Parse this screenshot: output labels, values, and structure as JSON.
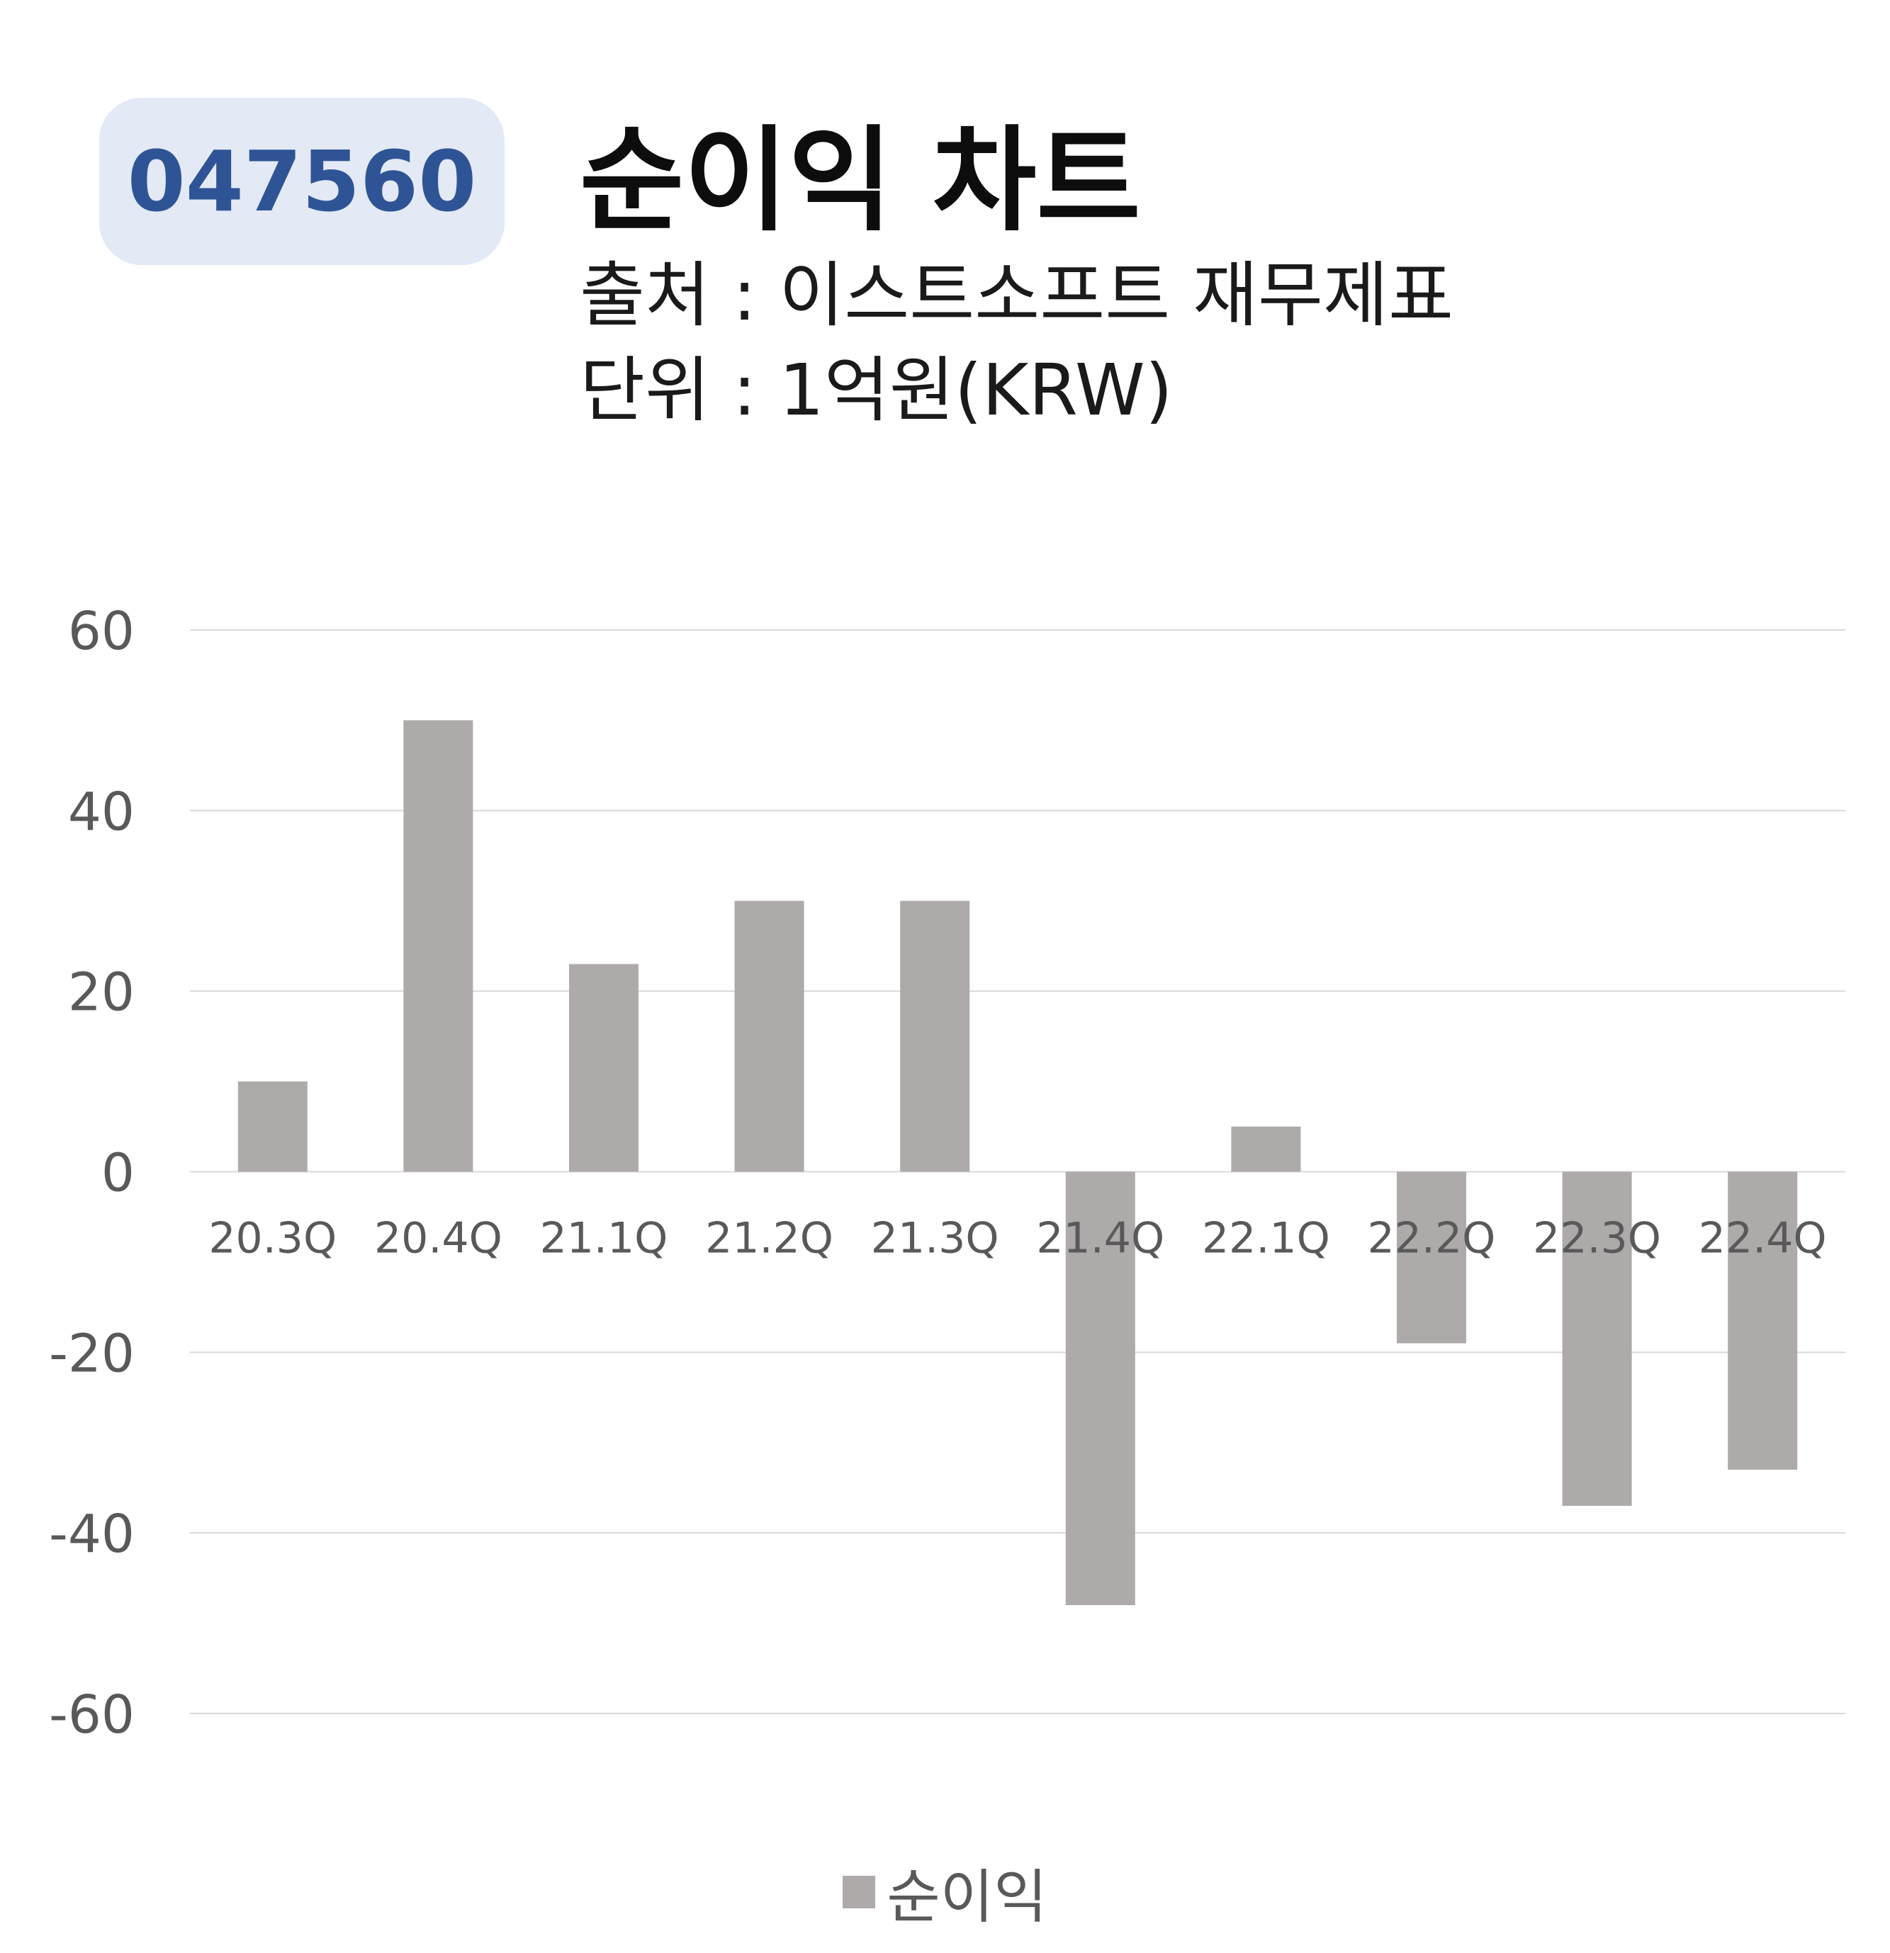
{
  "header": {
    "ticker": "047560",
    "title": "순이익 차트",
    "source": "출처 : 이스트소프트 재무제표",
    "unit": "단위 : 1억원(KRW)"
  },
  "chart_data": {
    "type": "bar",
    "categories": [
      "20.3Q",
      "20.4Q",
      "21.1Q",
      "21.2Q",
      "21.3Q",
      "21.4Q",
      "22.1Q",
      "22.2Q",
      "22.3Q",
      "22.4Q"
    ],
    "series": [
      {
        "name": "순이익",
        "values": [
          10,
          50,
          23,
          30,
          30,
          -48,
          5,
          -19,
          -37,
          -33
        ],
        "color": "#aeaaaa"
      }
    ],
    "ylim": [
      -60,
      60
    ],
    "yticks": [
      60,
      40,
      20,
      0,
      -20,
      -40,
      -60
    ],
    "grid": true,
    "legend_position": "bottom",
    "colors": {
      "grid": "#d9d9d9",
      "tick_text": "#595959"
    }
  }
}
